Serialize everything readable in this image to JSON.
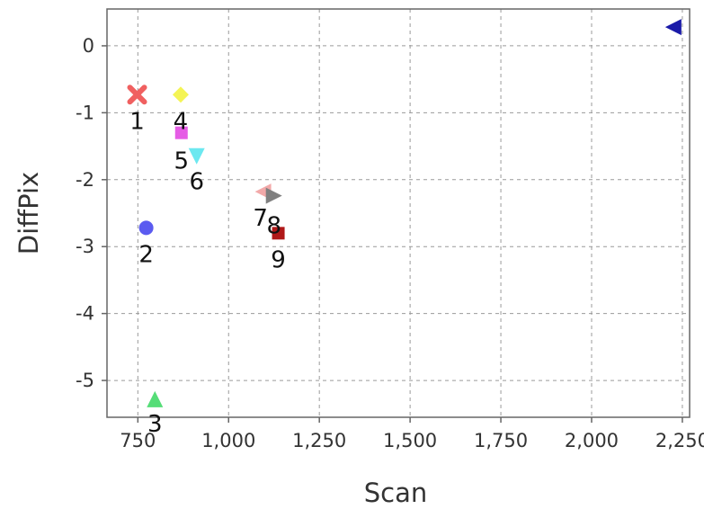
{
  "chart_data": {
    "type": "scatter",
    "xlabel": "Scan",
    "ylabel": "DiffPix",
    "xlim": [
      665,
      2270
    ],
    "ylim": [
      -5.55,
      0.55
    ],
    "xticks": [
      750,
      1000,
      1250,
      1500,
      1750,
      2000,
      2250
    ],
    "xtick_labels": [
      "750",
      "1,000",
      "1,250",
      "1,500",
      "1,750",
      "2,000",
      "2,250"
    ],
    "yticks": [
      0,
      -1,
      -2,
      -3,
      -4,
      -5
    ],
    "ytick_labels": [
      "0",
      "-1",
      "-2",
      "-3",
      "-4",
      "-5"
    ],
    "grid": true,
    "points": [
      {
        "label": "1",
        "x": 748,
        "y": -0.73,
        "marker": "x",
        "color": "#f06060"
      },
      {
        "label": "2",
        "x": 773,
        "y": -2.72,
        "marker": "circle",
        "color": "#5b5bf0"
      },
      {
        "label": "3",
        "x": 797,
        "y": -5.28,
        "marker": "triangle-up",
        "color": "#55dd77"
      },
      {
        "label": "4",
        "x": 868,
        "y": -0.73,
        "marker": "diamond",
        "color": "#f4f455"
      },
      {
        "label": "5",
        "x": 870,
        "y": -1.3,
        "marker": "square",
        "color": "#e55ce5"
      },
      {
        "label": "6",
        "x": 912,
        "y": -1.65,
        "marker": "triangle-down",
        "color": "#6ce8f0"
      },
      {
        "label": "7",
        "x": 1095,
        "y": -2.18,
        "marker": "triangle-left",
        "color": "#f2a9a9"
      },
      {
        "label": "8",
        "x": 1125,
        "y": -2.24,
        "marker": "triangle-right",
        "color": "#808080"
      },
      {
        "label": "9",
        "x": 1137,
        "y": -2.8,
        "marker": "square",
        "color": "#b01818"
      },
      {
        "label": "",
        "x": 2225,
        "y": 0.28,
        "marker": "triangle-left",
        "color": "#1a1aa8"
      }
    ]
  }
}
